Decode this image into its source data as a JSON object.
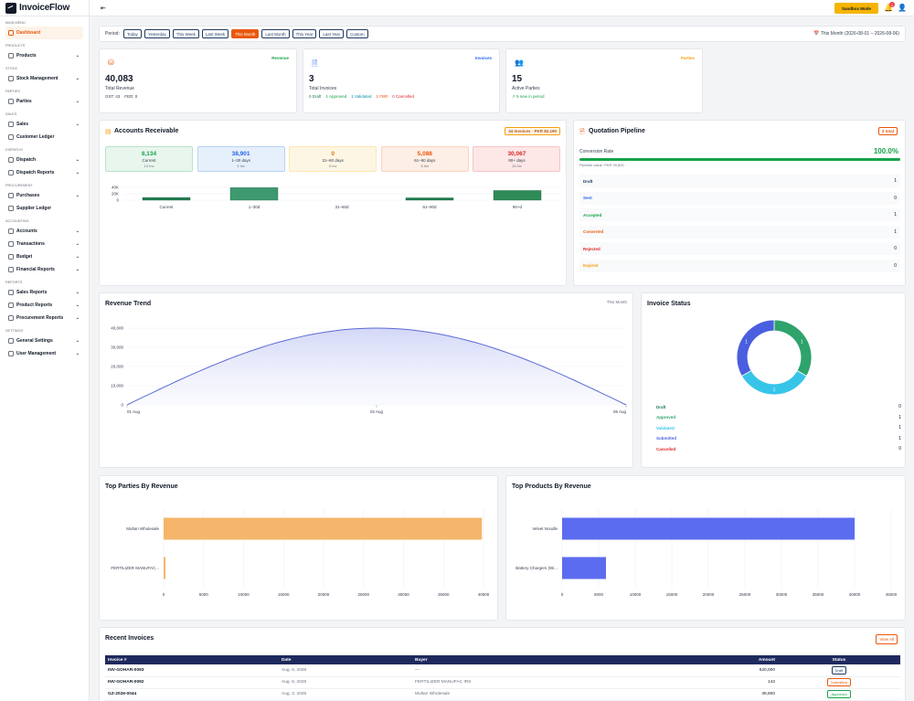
{
  "app": {
    "name": "InvoiceFlow",
    "sandbox_label": "Sandbox Mode",
    "notifications": "1"
  },
  "sidebar": {
    "sections": [
      {
        "title": "MAIN MENU",
        "items": [
          {
            "label": "Dashboard",
            "active": true,
            "chevron": false
          }
        ]
      },
      {
        "title": "PRODUCTS",
        "items": [
          {
            "label": "Products",
            "chevron": true
          }
        ]
      },
      {
        "title": "STOCK",
        "items": [
          {
            "label": "Stock Management",
            "chevron": true
          }
        ]
      },
      {
        "title": "PARTIES",
        "items": [
          {
            "label": "Parties",
            "chevron": true
          }
        ]
      },
      {
        "title": "SALES",
        "items": [
          {
            "label": "Sales",
            "chevron": true
          },
          {
            "label": "Customer Ledger",
            "chevron": false
          }
        ]
      },
      {
        "title": "DISPATCH",
        "items": [
          {
            "label": "Dispatch",
            "chevron": true
          },
          {
            "label": "Dispatch Reports",
            "chevron": true
          }
        ]
      },
      {
        "title": "PROCUREMENT",
        "items": [
          {
            "label": "Purchases",
            "chevron": true
          },
          {
            "label": "Supplier Ledger",
            "chevron": false
          }
        ]
      },
      {
        "title": "ACCOUNTING",
        "items": [
          {
            "label": "Accounts",
            "chevron": true
          },
          {
            "label": "Transactions",
            "chevron": true
          },
          {
            "label": "Budget",
            "chevron": true
          },
          {
            "label": "Financial Reports",
            "chevron": true
          }
        ]
      },
      {
        "title": "REPORTS",
        "items": [
          {
            "label": "Sales Reports",
            "chevron": true
          },
          {
            "label": "Product Reports",
            "chevron": true
          },
          {
            "label": "Procurement Reports",
            "chevron": true
          }
        ]
      },
      {
        "title": "SETTINGS",
        "items": [
          {
            "label": "General Settings",
            "chevron": true
          },
          {
            "label": "User Management",
            "chevron": true
          }
        ]
      }
    ]
  },
  "period": {
    "label": "Period:",
    "options": [
      "Today",
      "Yesterday",
      "This Week",
      "Last Week",
      "This Month",
      "Last Month",
      "This Year",
      "Last Year",
      "Custom"
    ],
    "selected": "This Month",
    "range_text": "This Month (2026-08-01 – 2026-08-06)"
  },
  "stats": {
    "revenue": {
      "tag": "Revenue",
      "value": "40,083",
      "caption": "Total Revenue",
      "sub": [
        "GST: 43",
        "FED: 0"
      ]
    },
    "invoices": {
      "tag": "Invoices",
      "value": "3",
      "caption": "Total Invoices",
      "sub": [
        "0 Draft",
        "1 Approved",
        "1 Validated",
        "1 FBR",
        "0 Cancelled"
      ]
    },
    "parties": {
      "tag": "Parties",
      "value": "15",
      "caption": "Active Parties",
      "sub": [
        "5 new in period"
      ]
    }
  },
  "receivable": {
    "title": "Accounts Receivable",
    "badge": "34 Invoices · PKR 82,190",
    "buckets": [
      {
        "value": "8,134",
        "label": "Current",
        "count": "13 Inv"
      },
      {
        "value": "38,901",
        "label": "1–30 days",
        "count": "3 Inv"
      },
      {
        "value": "0",
        "label": "31–60 days",
        "count": "0 Inv"
      },
      {
        "value": "5,088",
        "label": "61–90 days",
        "count": "5 Inv"
      },
      {
        "value": "30,067",
        "label": "90+ days",
        "count": "13 Inv"
      }
    ]
  },
  "pipeline": {
    "title": "Quotation Pipeline",
    "badge": "3 total",
    "conversion_label": "Conversion Rate",
    "conversion_value": "100.0%",
    "conversion_pct": 100,
    "pipeline_value": "Pipeline value: PKR 39,800",
    "rows": [
      {
        "label": "Draft",
        "value": "1"
      },
      {
        "label": "Sent",
        "value": "0"
      },
      {
        "label": "Accepted",
        "value": "1"
      },
      {
        "label": "Converted",
        "value": "1"
      },
      {
        "label": "Rejected",
        "value": "0"
      },
      {
        "label": "Expired",
        "value": "0"
      }
    ]
  },
  "trend": {
    "title": "Revenue Trend",
    "period": "This Month"
  },
  "status": {
    "title": "Invoice Status"
  },
  "top_parties": {
    "title": "Top Parties By Revenue"
  },
  "top_products": {
    "title": "Top Products By Revenue"
  },
  "recent": {
    "title": "Recent Invoices",
    "view_all": "View All",
    "columns": [
      "Invoice #",
      "Date",
      "Buyer",
      "Amount",
      "Status"
    ],
    "rows": [
      {
        "id": "INV-GOHAR-0093",
        "date": "Aug. 6, 2026",
        "buyer": "—",
        "amount": "620,000",
        "status": "Draft"
      },
      {
        "id": "INV-GOHAR-0092",
        "date": "Aug. 6, 2026",
        "buyer": "FERTILIZER MANUFAC IRS",
        "amount": "142",
        "status": "Submitted"
      },
      {
        "id": "GZ-2026-0044",
        "date": "Aug. 2, 2026",
        "buyer": "Multan Wholesale",
        "amount": "39,800",
        "status": "Approved"
      }
    ]
  },
  "chart_data": [
    {
      "type": "bar",
      "title": "Accounts Receivable",
      "categories": [
        "Current",
        "1–30d",
        "31–60d",
        "61–90d",
        "90+d"
      ],
      "values": [
        8134,
        38901,
        0,
        5088,
        30067
      ],
      "ylim": [
        0,
        40000
      ],
      "yticks": [
        "40K",
        "20K",
        "0"
      ],
      "colors": [
        "#1e7b4f",
        "#3d9970",
        "#2e8b57",
        "#1e7b4f",
        "#2e8b57"
      ]
    },
    {
      "type": "area",
      "title": "Revenue Trend",
      "x": [
        "01 Aug",
        "02 Aug",
        "06 Aug"
      ],
      "x_values": [
        0,
        0.5,
        1
      ],
      "peak": 40000,
      "ylim": [
        0,
        40000
      ],
      "yticks": [
        "40,000",
        "30,000",
        "20,000",
        "10,000",
        "0"
      ],
      "color": "#5b6bd6"
    },
    {
      "type": "pie",
      "title": "Invoice Status",
      "slices": [
        {
          "label": "Draft",
          "value": 0,
          "color": "#1e7b4f"
        },
        {
          "label": "Approved",
          "value": 1,
          "color": "#2ea36b"
        },
        {
          "label": "Validated",
          "value": 1,
          "color": "#36c5e8"
        },
        {
          "label": "Submitted",
          "value": 1,
          "color": "#4a5fe0"
        },
        {
          "label": "Cancelled",
          "value": 0,
          "color": "#dc2626"
        }
      ],
      "slice_labels": [
        "1",
        "1",
        "1"
      ]
    },
    {
      "type": "bar",
      "title": "Top Parties By Revenue",
      "orientation": "horizontal",
      "categories": [
        "Multan Wholesale",
        "FERTILIZER MANUFAC..."
      ],
      "values": [
        39800,
        142
      ],
      "xlim": [
        0,
        40000
      ],
      "xticks": [
        "0",
        "5000",
        "10000",
        "15000",
        "20000",
        "25000",
        "30000",
        "35000",
        "40000"
      ],
      "color": "#f5b66b"
    },
    {
      "type": "bar",
      "title": "Top Products By Revenue",
      "orientation": "horizontal",
      "categories": [
        "Velvet Noodle",
        "Battery Chargers (Wi..."
      ],
      "values": [
        40000,
        6000
      ],
      "xlim": [
        0,
        45000
      ],
      "xticks": [
        "0",
        "5000",
        "10000",
        "15000",
        "20000",
        "25000",
        "30000",
        "35000",
        "40000",
        "45000"
      ],
      "color": "#5c6cf0"
    }
  ],
  "colors": {
    "accent": "#ea580c",
    "navy": "#1e2a5e",
    "green": "#16a34a",
    "sandbox": "#f5b400"
  }
}
